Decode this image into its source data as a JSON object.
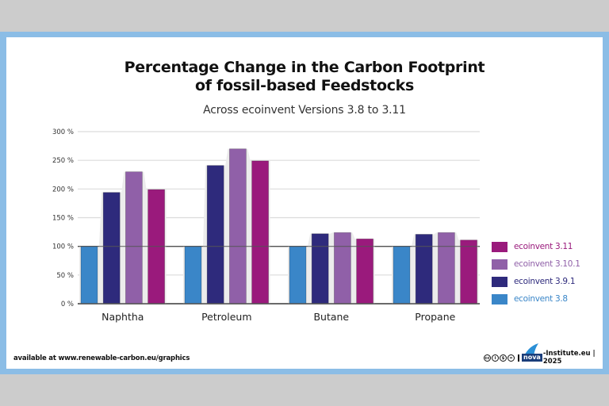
{
  "title_line1": "Percentage Change in the Carbon Footprint",
  "title_line2": "of fossil-based Feedstocks",
  "subtitle": "Across ecoinvent Versions 3.8 to 3.11",
  "footer": {
    "source": "available at www.renewable-carbon.eu/graphics",
    "nova_logo_text": "nova",
    "credit": "-Institute.eu | 2025",
    "license_icons": [
      "cc-icon",
      "by-icon",
      "nc-icon",
      "nd-icon"
    ]
  },
  "colors": {
    "ecoinvent 3.8": "#3a86c8",
    "ecoinvent 3.9.1": "#2e2a7c",
    "ecoinvent 3.10.1": "#9060a8",
    "ecoinvent 3.11": "#9a1a7c",
    "background": "#cccccc",
    "frame": "#8bbde6"
  },
  "legend": [
    {
      "label": "ecoinvent 3.11",
      "color": "#9a1a7c"
    },
    {
      "label": "ecoinvent 3.10.1",
      "color": "#9060a8"
    },
    {
      "label": "ecoinvent 3.9.1",
      "color": "#2e2a7c"
    },
    {
      "label": "ecoinvent 3.8",
      "color": "#3a86c8"
    }
  ],
  "chart_data": {
    "type": "bar",
    "title": "Percentage Change in the Carbon Footprint of fossil-based Feedstocks",
    "subtitle": "Across ecoinvent Versions 3.8 to 3.11",
    "xlabel": "",
    "ylabel": "",
    "categories": [
      "Naphtha",
      "Petroleum",
      "Butane",
      "Propane"
    ],
    "series": [
      {
        "name": "ecoinvent 3.8",
        "values": [
          100,
          100,
          100,
          100
        ]
      },
      {
        "name": "ecoinvent 3.9.1",
        "values": [
          194,
          241,
          122,
          121
        ]
      },
      {
        "name": "ecoinvent 3.10.1",
        "values": [
          230,
          270,
          124,
          124
        ]
      },
      {
        "name": "ecoinvent 3.11",
        "values": [
          199,
          249,
          113,
          111
        ]
      }
    ],
    "ylim": [
      0,
      300
    ],
    "yticks": [
      0,
      50,
      100,
      150,
      200,
      250,
      300
    ],
    "ytick_labels": [
      "0 %",
      "50 %",
      "100 %",
      "150 %",
      "200 %",
      "250 %",
      "300 %"
    ],
    "reference_line": 100,
    "grid": true,
    "legend_position": "right"
  }
}
